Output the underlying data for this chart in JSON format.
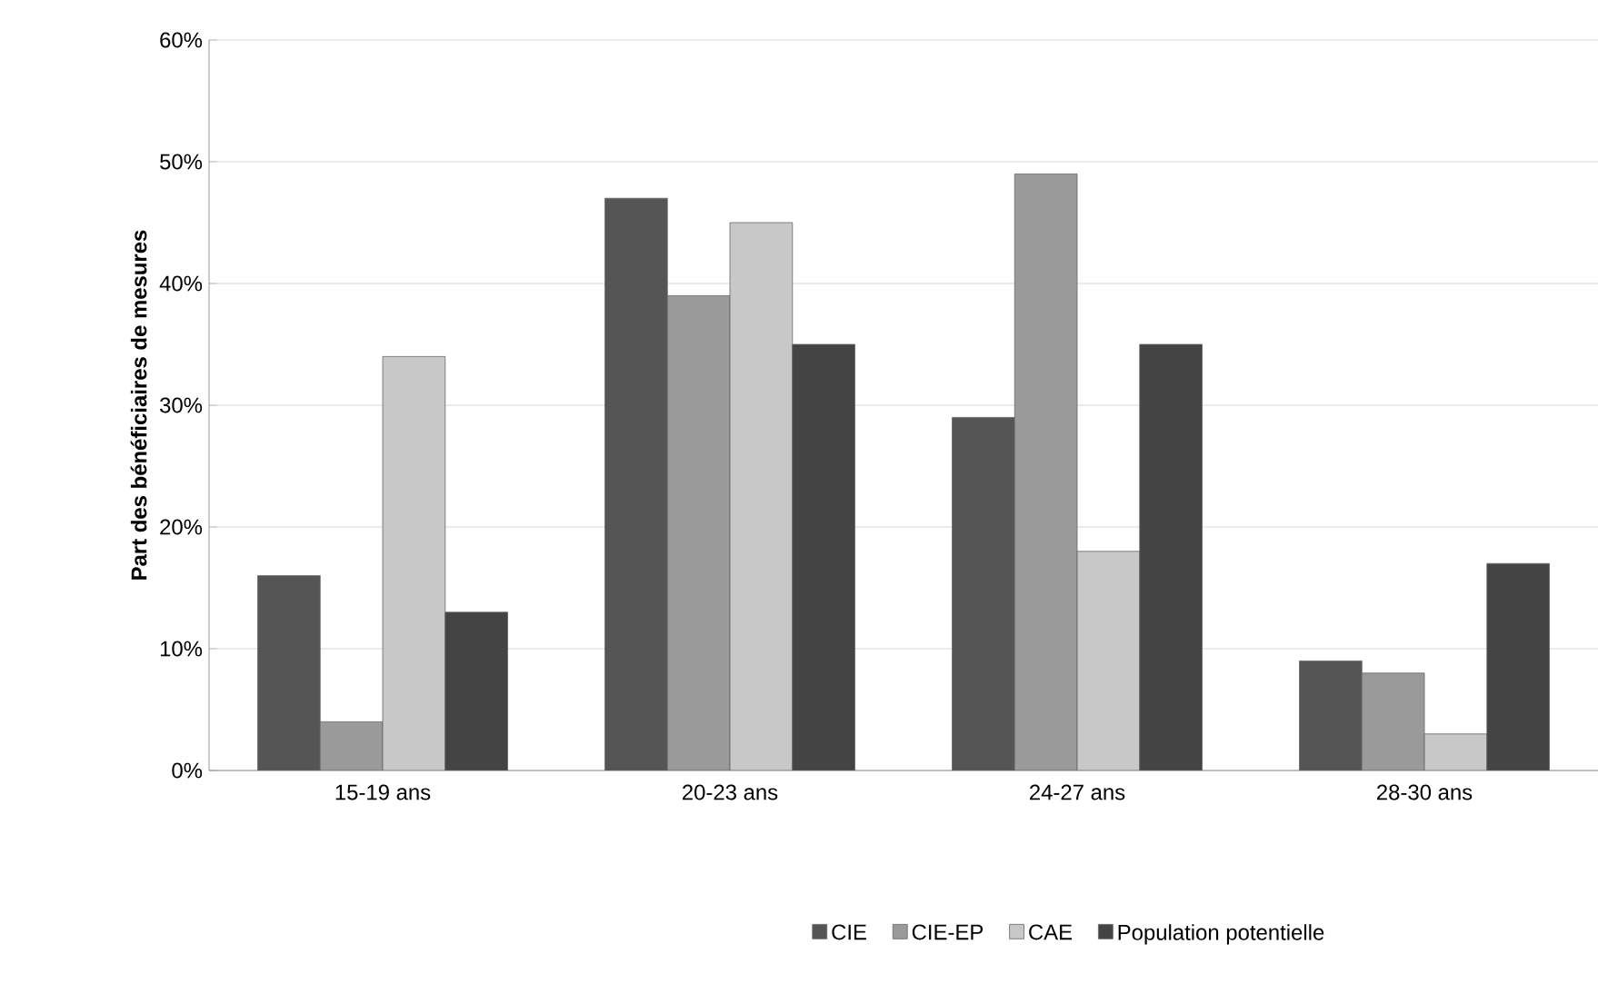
{
  "chart_data": {
    "type": "bar",
    "ylabel": "Part des bénéficiaires de mesures",
    "categories": [
      "15-19 ans",
      "20-23 ans",
      "24-27 ans",
      "28-30 ans"
    ],
    "series": [
      {
        "name": "CIE",
        "color": "#555555",
        "values": [
          16,
          47,
          29,
          9
        ]
      },
      {
        "name": "CIE-EP",
        "color": "#9a9a9a",
        "values": [
          4,
          39,
          49,
          8
        ]
      },
      {
        "name": "CAE",
        "color": "#c8c8c8",
        "values": [
          34,
          45,
          18,
          3
        ]
      },
      {
        "name": "Population potentielle",
        "color": "#444444",
        "values": [
          13,
          35,
          35,
          17
        ]
      }
    ],
    "ylim": [
      0,
      60
    ],
    "yticks": [
      {
        "value": 0,
        "label": "0%"
      },
      {
        "value": 10,
        "label": "10%"
      },
      {
        "value": 20,
        "label": "20%"
      },
      {
        "value": 30,
        "label": "30%"
      },
      {
        "value": 40,
        "label": "40%"
      },
      {
        "value": 50,
        "label": "50%"
      },
      {
        "value": 60,
        "label": "60%"
      }
    ],
    "grid": "y",
    "legend": "bottom"
  }
}
